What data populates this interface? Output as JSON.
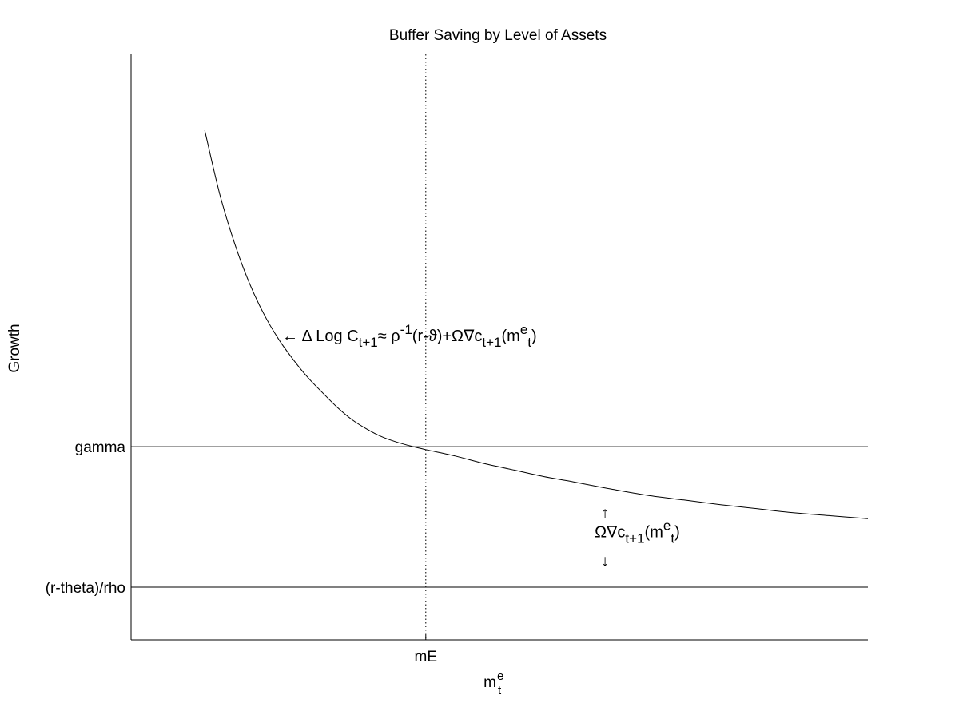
{
  "chart_data": {
    "type": "line",
    "title": "Buffer Saving by Level of Assets",
    "xlabel": {
      "base": "m",
      "sup": "e",
      "sub": "t"
    },
    "ylabel": "Growth",
    "xlim": [
      0,
      10
    ],
    "ylim": [
      0,
      10
    ],
    "x_ticks": [
      {
        "value": 4,
        "label": "mE"
      }
    ],
    "y_ticks": [
      {
        "value": 0.9,
        "label": "(r-theta)/rho"
      },
      {
        "value": 3.3,
        "label": "gamma"
      }
    ],
    "grid": false,
    "series": [
      {
        "x": [
          1.0,
          1.2,
          1.4,
          1.6,
          1.8,
          2.0,
          2.2,
          2.4,
          2.6,
          2.8,
          3.0,
          3.2,
          3.4,
          3.6,
          3.8,
          4.0,
          4.4,
          4.8,
          5.2,
          5.6,
          6.0,
          6.5,
          7.0,
          7.5,
          8.0,
          8.5,
          9.0,
          9.5,
          10.0
        ],
        "y": [
          8.7,
          7.63,
          6.79,
          6.11,
          5.57,
          5.14,
          4.79,
          4.48,
          4.22,
          3.97,
          3.76,
          3.6,
          3.47,
          3.38,
          3.31,
          3.25,
          3.14,
          3.01,
          2.9,
          2.79,
          2.7,
          2.58,
          2.47,
          2.39,
          2.31,
          2.24,
          2.17,
          2.12,
          2.07
        ]
      }
    ],
    "hlines": [
      {
        "y": 3.3,
        "label": "gamma"
      },
      {
        "y": 0.9,
        "label": "(r-theta)/rho"
      }
    ],
    "vlines": [
      {
        "x": 4,
        "label": "mE",
        "style": "dotted"
      }
    ],
    "annotations": {
      "curve": {
        "x": 2.05,
        "y": 5.1,
        "arrow": "←",
        "parts": [
          {
            "t": " Δ Log C",
            "s": "n"
          },
          {
            "t": "t+1",
            "s": "sub"
          },
          {
            "t": "≈ ρ",
            "s": "n"
          },
          {
            "t": "-1",
            "s": "sup"
          },
          {
            "t": "(r-ϑ)+Ω∇c",
            "s": "n"
          },
          {
            "t": "t+1",
            "s": "sub"
          },
          {
            "t": "(m",
            "s": "n"
          },
          {
            "t": "e",
            "s": "sup"
          },
          {
            "t": "t",
            "s": "sub"
          },
          {
            "t": ")",
            "s": "n"
          }
        ]
      },
      "gap": {
        "x": 6.4,
        "y": 1.75,
        "arrow_up": "↑",
        "arrow_down": "↓",
        "parts": [
          {
            "t": "Ω∇c",
            "s": "n"
          },
          {
            "t": "t+1",
            "s": "sub"
          },
          {
            "t": "(m",
            "s": "n"
          },
          {
            "t": "e",
            "s": "sup"
          },
          {
            "t": "t",
            "s": "sub"
          },
          {
            "t": ")",
            "s": "n"
          }
        ]
      }
    }
  }
}
